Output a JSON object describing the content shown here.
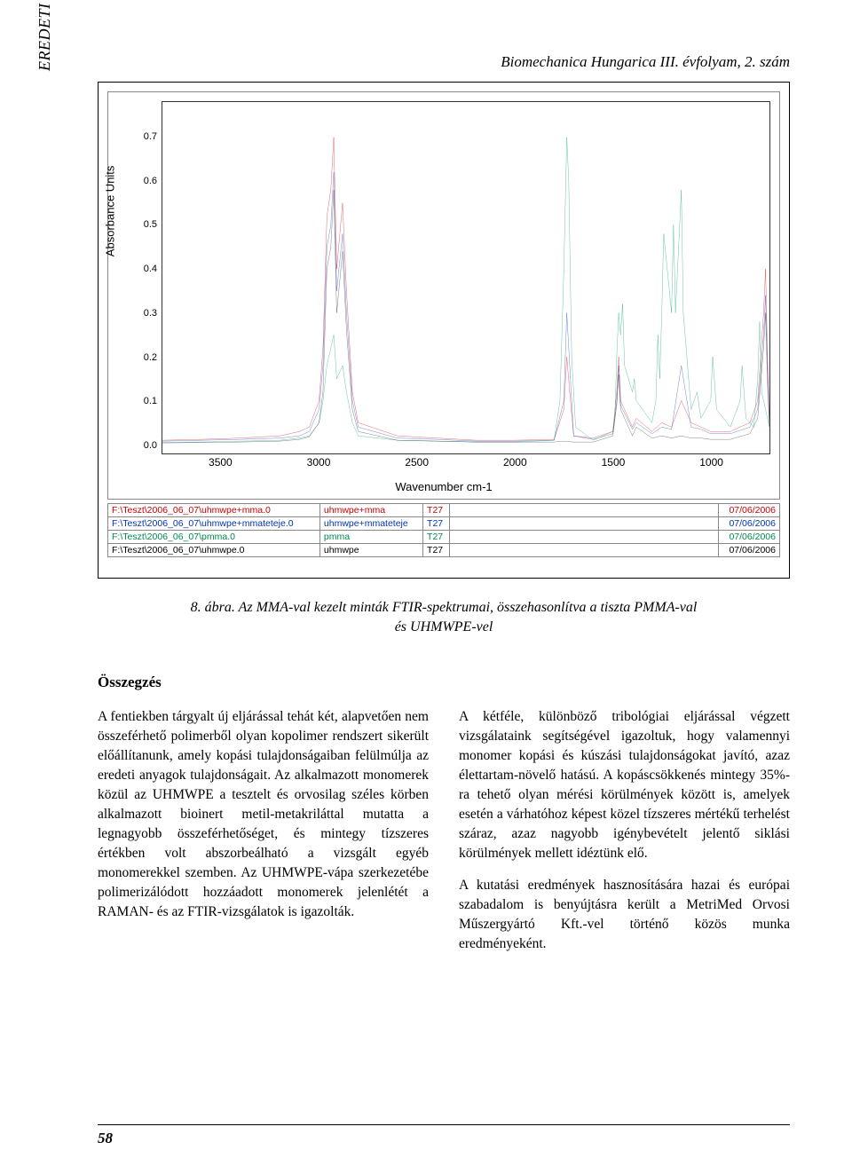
{
  "header": {
    "journal": "Biomechanica Hungarica III. évfolyam, 2. szám",
    "sidebar_label": "EREDETI KÖZLEMÉNYEK"
  },
  "figure": {
    "chart": {
      "type": "line",
      "xlabel": "Wavenumber cm-1",
      "ylabel": "Absorbance Units",
      "xlim": [
        3800,
        700
      ],
      "ylim": [
        -0.02,
        0.78
      ],
      "xticks": [
        3500,
        3000,
        2500,
        2000,
        1500,
        1000
      ],
      "yticks": [
        0.0,
        0.1,
        0.2,
        0.3,
        0.4,
        0.5,
        0.6,
        0.7
      ],
      "background_color": "#ffffff",
      "axis_color": "#333333",
      "series": [
        {
          "name": "uhmwpe+mma",
          "color": "#d30000",
          "line_width": 1.2,
          "data": [
            [
              3800,
              0.01
            ],
            [
              3600,
              0.012
            ],
            [
              3400,
              0.015
            ],
            [
              3200,
              0.02
            ],
            [
              3100,
              0.03
            ],
            [
              3050,
              0.04
            ],
            [
              3000,
              0.1
            ],
            [
              2980,
              0.22
            ],
            [
              2960,
              0.52
            ],
            [
              2940,
              0.58
            ],
            [
              2925,
              0.7
            ],
            [
              2910,
              0.4
            ],
            [
              2880,
              0.55
            ],
            [
              2860,
              0.35
            ],
            [
              2830,
              0.12
            ],
            [
              2800,
              0.05
            ],
            [
              2600,
              0.02
            ],
            [
              2400,
              0.015
            ],
            [
              2200,
              0.01
            ],
            [
              2000,
              0.01
            ],
            [
              1800,
              0.012
            ],
            [
              1750,
              0.08
            ],
            [
              1735,
              0.2
            ],
            [
              1720,
              0.12
            ],
            [
              1700,
              0.02
            ],
            [
              1600,
              0.015
            ],
            [
              1500,
              0.03
            ],
            [
              1480,
              0.12
            ],
            [
              1470,
              0.2
            ],
            [
              1460,
              0.1
            ],
            [
              1400,
              0.04
            ],
            [
              1380,
              0.06
            ],
            [
              1300,
              0.03
            ],
            [
              1250,
              0.05
            ],
            [
              1200,
              0.04
            ],
            [
              1150,
              0.1
            ],
            [
              1100,
              0.05
            ],
            [
              1050,
              0.04
            ],
            [
              1000,
              0.03
            ],
            [
              900,
              0.03
            ],
            [
              800,
              0.05
            ],
            [
              760,
              0.1
            ],
            [
              730,
              0.3
            ],
            [
              720,
              0.4
            ],
            [
              710,
              0.2
            ],
            [
              700,
              0.06
            ]
          ]
        },
        {
          "name": "uhmwpe+mmateteje",
          "color": "#1a34c8",
          "line_width": 1.2,
          "data": [
            [
              3800,
              0.008
            ],
            [
              3600,
              0.01
            ],
            [
              3400,
              0.012
            ],
            [
              3200,
              0.015
            ],
            [
              3100,
              0.02
            ],
            [
              3050,
              0.03
            ],
            [
              3000,
              0.08
            ],
            [
              2980,
              0.18
            ],
            [
              2960,
              0.45
            ],
            [
              2940,
              0.5
            ],
            [
              2925,
              0.62
            ],
            [
              2910,
              0.35
            ],
            [
              2880,
              0.48
            ],
            [
              2860,
              0.3
            ],
            [
              2830,
              0.1
            ],
            [
              2800,
              0.04
            ],
            [
              2600,
              0.015
            ],
            [
              2400,
              0.012
            ],
            [
              2200,
              0.008
            ],
            [
              2000,
              0.008
            ],
            [
              1800,
              0.01
            ],
            [
              1750,
              0.1
            ],
            [
              1735,
              0.3
            ],
            [
              1720,
              0.18
            ],
            [
              1700,
              0.02
            ],
            [
              1600,
              0.012
            ],
            [
              1500,
              0.025
            ],
            [
              1480,
              0.1
            ],
            [
              1470,
              0.18
            ],
            [
              1460,
              0.09
            ],
            [
              1400,
              0.035
            ],
            [
              1380,
              0.05
            ],
            [
              1300,
              0.025
            ],
            [
              1250,
              0.04
            ],
            [
              1200,
              0.035
            ],
            [
              1150,
              0.18
            ],
            [
              1100,
              0.04
            ],
            [
              1050,
              0.035
            ],
            [
              1000,
              0.025
            ],
            [
              900,
              0.025
            ],
            [
              800,
              0.04
            ],
            [
              760,
              0.08
            ],
            [
              730,
              0.25
            ],
            [
              720,
              0.34
            ],
            [
              710,
              0.17
            ],
            [
              700,
              0.05
            ]
          ]
        },
        {
          "name": "pmma",
          "color": "#00a05e",
          "line_width": 1.2,
          "data": [
            [
              3800,
              0.005
            ],
            [
              3600,
              0.006
            ],
            [
              3400,
              0.008
            ],
            [
              3200,
              0.01
            ],
            [
              3100,
              0.015
            ],
            [
              3050,
              0.02
            ],
            [
              3000,
              0.05
            ],
            [
              2980,
              0.1
            ],
            [
              2960,
              0.18
            ],
            [
              2940,
              0.22
            ],
            [
              2925,
              0.25
            ],
            [
              2910,
              0.15
            ],
            [
              2880,
              0.18
            ],
            [
              2860,
              0.12
            ],
            [
              2830,
              0.05
            ],
            [
              2800,
              0.02
            ],
            [
              2600,
              0.01
            ],
            [
              2400,
              0.008
            ],
            [
              2200,
              0.006
            ],
            [
              2000,
              0.006
            ],
            [
              1800,
              0.01
            ],
            [
              1770,
              0.1
            ],
            [
              1750,
              0.4
            ],
            [
              1735,
              0.7
            ],
            [
              1725,
              0.6
            ],
            [
              1710,
              0.2
            ],
            [
              1690,
              0.04
            ],
            [
              1600,
              0.01
            ],
            [
              1500,
              0.03
            ],
            [
              1490,
              0.06
            ],
            [
              1480,
              0.2
            ],
            [
              1470,
              0.3
            ],
            [
              1460,
              0.25
            ],
            [
              1450,
              0.32
            ],
            [
              1440,
              0.18
            ],
            [
              1400,
              0.12
            ],
            [
              1390,
              0.15
            ],
            [
              1380,
              0.1
            ],
            [
              1300,
              0.05
            ],
            [
              1280,
              0.1
            ],
            [
              1270,
              0.25
            ],
            [
              1260,
              0.15
            ],
            [
              1250,
              0.3
            ],
            [
              1240,
              0.48
            ],
            [
              1200,
              0.3
            ],
            [
              1190,
              0.5
            ],
            [
              1180,
              0.3
            ],
            [
              1150,
              0.58
            ],
            [
              1140,
              0.3
            ],
            [
              1100,
              0.08
            ],
            [
              1070,
              0.12
            ],
            [
              1050,
              0.06
            ],
            [
              1000,
              0.1
            ],
            [
              990,
              0.2
            ],
            [
              970,
              0.08
            ],
            [
              900,
              0.04
            ],
            [
              850,
              0.1
            ],
            [
              840,
              0.18
            ],
            [
              820,
              0.06
            ],
            [
              780,
              0.04
            ],
            [
              760,
              0.15
            ],
            [
              750,
              0.28
            ],
            [
              740,
              0.12
            ],
            [
              700,
              0.04
            ]
          ]
        },
        {
          "name": "uhmwpe",
          "color": "#000000",
          "line_width": 1.0,
          "data": [
            [
              3800,
              0.004
            ],
            [
              3600,
              0.005
            ],
            [
              3400,
              0.006
            ],
            [
              3200,
              0.008
            ],
            [
              3100,
              0.012
            ],
            [
              3050,
              0.018
            ],
            [
              3000,
              0.05
            ],
            [
              2980,
              0.12
            ],
            [
              2960,
              0.4
            ],
            [
              2940,
              0.45
            ],
            [
              2925,
              0.58
            ],
            [
              2910,
              0.3
            ],
            [
              2880,
              0.44
            ],
            [
              2860,
              0.26
            ],
            [
              2830,
              0.08
            ],
            [
              2800,
              0.03
            ],
            [
              2600,
              0.01
            ],
            [
              2400,
              0.008
            ],
            [
              2200,
              0.006
            ],
            [
              2000,
              0.006
            ],
            [
              1800,
              0.006
            ],
            [
              1750,
              0.008
            ],
            [
              1700,
              0.006
            ],
            [
              1600,
              0.006
            ],
            [
              1500,
              0.02
            ],
            [
              1480,
              0.09
            ],
            [
              1470,
              0.16
            ],
            [
              1460,
              0.08
            ],
            [
              1400,
              0.02
            ],
            [
              1380,
              0.04
            ],
            [
              1300,
              0.015
            ],
            [
              1250,
              0.02
            ],
            [
              1200,
              0.015
            ],
            [
              1150,
              0.02
            ],
            [
              1100,
              0.015
            ],
            [
              1050,
              0.015
            ],
            [
              1000,
              0.012
            ],
            [
              900,
              0.012
            ],
            [
              800,
              0.025
            ],
            [
              760,
              0.06
            ],
            [
              730,
              0.22
            ],
            [
              720,
              0.3
            ],
            [
              710,
              0.14
            ],
            [
              700,
              0.04
            ]
          ]
        }
      ]
    },
    "legend_rows": [
      {
        "class": "red",
        "path": "F:\\Teszt\\2006_06_07\\uhmwpe+mma.0",
        "name": "uhmwpe+mma",
        "col": "T27",
        "date": "07/06/2006"
      },
      {
        "class": "blue",
        "path": "F:\\Teszt\\2006_06_07\\uhmwpe+mmateteje.0",
        "name": "uhmwpe+mmateteje",
        "col": "T27",
        "date": "07/06/2006"
      },
      {
        "class": "green",
        "path": "F:\\Teszt\\2006_06_07\\pmma.0",
        "name": "pmma",
        "col": "T27",
        "date": "07/06/2006"
      },
      {
        "class": "black",
        "path": "F:\\Teszt\\2006_06_07\\uhmwpe.0",
        "name": "uhmwpe",
        "col": "T27",
        "date": "07/06/2006"
      }
    ],
    "caption_line1": "8. ábra. Az MMA-val kezelt minták FTIR-spektrumai, összehasonlítva a tiszta PMMA-val",
    "caption_line2": "és UHMWPE-vel"
  },
  "body": {
    "section_title": "Összegzés",
    "col1": "A fentiekben tárgyalt új eljárással tehát két, alapvetően nem összeférhető polimerből olyan kopolimer rendszert sikerült előállítanunk, amely kopási tulajdonságaiban felülmúlja az eredeti anyagok tulajdonságait. Az alkalmazott monomerek közül az UHMWPE a tesztelt és orvosilag széles körben alkalmazott bioinert metil-metakriláttal mutatta a legnagyobb összeférhetőséget, és mintegy tízszeres értékben volt abszorbeálható a vizsgált egyéb monomerekkel szemben. Az UHMWPE-vápa szerkezetébe polimerizálódott hozzáadott monomerek jelenlétét a RAMAN- és az FTIR-vizsgálatok is igazolták.",
    "col2_p1": "A kétféle, különböző tribológiai eljárással végzett vizsgálataink segítségével igazoltuk, hogy valamennyi monomer kopási és kúszási tulajdonságokat javító, azaz élettartam-növelő hatású. A kopáscsökkenés mintegy 35%-ra tehető olyan mérési körülmények között is, amelyek esetén a várhatóhoz képest közel tízszeres mértékű terhelést száraz, azaz nagyobb igénybevételt jelentő siklási körülmények mellett idéztünk elő.",
    "col2_p2": "A kutatási eredmények hasznosítására hazai és európai szabadalom is benyújtásra került a MetriMed Orvosi Műszergyártó Kft.-vel történő közös munka eredményeként."
  },
  "page_number": "58"
}
